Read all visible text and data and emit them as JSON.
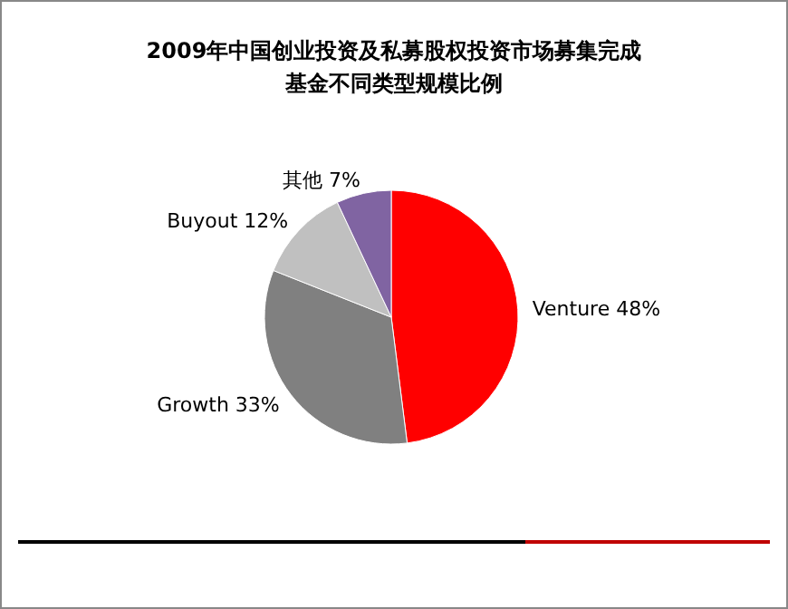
{
  "chart_data": {
    "type": "pie",
    "title": "2009年中国创业投资及私募股权投资市场募集完成",
    "subtitle": "基金不同类型规模比例",
    "categories": [
      "Venture",
      "Growth",
      "Buyout",
      "其他"
    ],
    "values": [
      48,
      33,
      12,
      7
    ],
    "colors": [
      "#ff0000",
      "#808080",
      "#c0c0c0",
      "#8064a2"
    ],
    "value_labels": [
      "48%",
      "33%",
      "12%",
      "7%"
    ],
    "legend": false
  }
}
